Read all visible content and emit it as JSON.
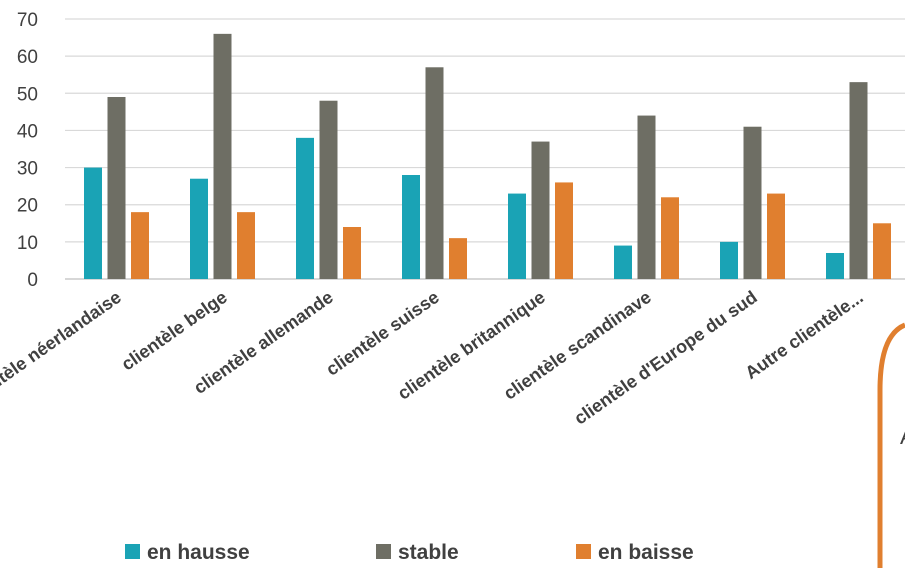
{
  "chart_data": {
    "type": "bar",
    "categories": [
      "clientèle néerlandaise",
      "clientèle belge",
      "clientèle allemande",
      "clientèle suisse",
      "clientèle britannique",
      "clientèle scandinave",
      "clientèle d'Europe du sud",
      "Autre clientèle..."
    ],
    "series": [
      {
        "name": "en hausse",
        "color": "#1aa3b5",
        "values": [
          30,
          27,
          38,
          28,
          23,
          9,
          10,
          7
        ]
      },
      {
        "name": "stable",
        "color": "#6e6e64",
        "values": [
          49,
          66,
          48,
          57,
          37,
          44,
          41,
          53
        ]
      },
      {
        "name": "en baisse",
        "color": "#e07f2f",
        "values": [
          18,
          18,
          14,
          11,
          26,
          22,
          23,
          15
        ]
      }
    ],
    "y_ticks": [
      "0",
      "10",
      "20",
      "30",
      "40",
      "50",
      "60",
      "70"
    ],
    "ylim": [
      0,
      70
    ],
    "grid": true,
    "legend_position": "bottom"
  },
  "callout": {
    "partial_text": "A",
    "border_color": "#e07f2f"
  }
}
